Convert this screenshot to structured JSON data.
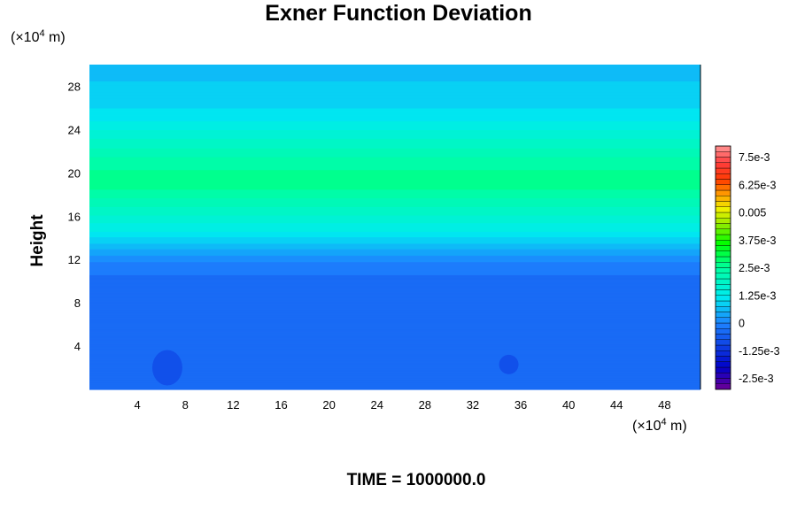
{
  "chart_data": {
    "type": "heatmap",
    "title": "Exner Function Deviation",
    "ylabel": "Height",
    "y_unit_prefix": "(×10",
    "y_unit_exp": "4",
    "y_unit_suffix": " m)",
    "x_unit_prefix": "(×10",
    "x_unit_exp": "4",
    "x_unit_suffix": " m)",
    "xlim": [
      0,
      51
    ],
    "ylim": [
      0,
      30
    ],
    "x_ticks": [
      "4",
      "8",
      "12",
      "16",
      "20",
      "24",
      "28",
      "32",
      "36",
      "40",
      "44",
      "48"
    ],
    "y_ticks": [
      "4",
      "8",
      "12",
      "16",
      "20",
      "24",
      "28"
    ],
    "colorbar": {
      "range": [
        -0.003,
        0.008
      ],
      "tick_labels": [
        "7.5e-3",
        "6.25e-3",
        "0.005",
        "3.75e-3",
        "2.5e-3",
        "1.25e-3",
        "0",
        "-1.25e-3",
        "-2.5e-3"
      ],
      "tick_values": [
        0.0075,
        0.00625,
        0.005,
        0.00375,
        0.0025,
        0.00125,
        0,
        -0.00125,
        -0.0025
      ]
    },
    "profile": [
      {
        "height": 0,
        "value": -0.0005
      },
      {
        "height": 10.4,
        "value": -0.0005
      },
      {
        "height": 10.6,
        "value": -0.0002
      },
      {
        "height": 11.6,
        "value": -0.0001
      },
      {
        "height": 12,
        "value": 0.0001
      },
      {
        "height": 12.6,
        "value": 0.0003
      },
      {
        "height": 13.2,
        "value": 0.0006
      },
      {
        "height": 14.5,
        "value": 0.0012
      },
      {
        "height": 16,
        "value": 0.0017
      },
      {
        "height": 17.5,
        "value": 0.0022
      },
      {
        "height": 18.5,
        "value": 0.0025
      },
      {
        "height": 19.5,
        "value": 0.0026
      },
      {
        "height": 21,
        "value": 0.0024
      },
      {
        "height": 23,
        "value": 0.0018
      },
      {
        "height": 25,
        "value": 0.0012
      },
      {
        "height": 27,
        "value": 0.0008
      },
      {
        "height": 30,
        "value": 0.0007
      }
    ],
    "anomalies": [
      {
        "x": 6.5,
        "y": 2.0,
        "value": -0.0008
      },
      {
        "x": 35,
        "y": 2.3,
        "value": -0.0008
      }
    ]
  },
  "time_label": "TIME = 1000000.0",
  "colors": {
    "background": "#ffffff",
    "frame": "#000000"
  }
}
